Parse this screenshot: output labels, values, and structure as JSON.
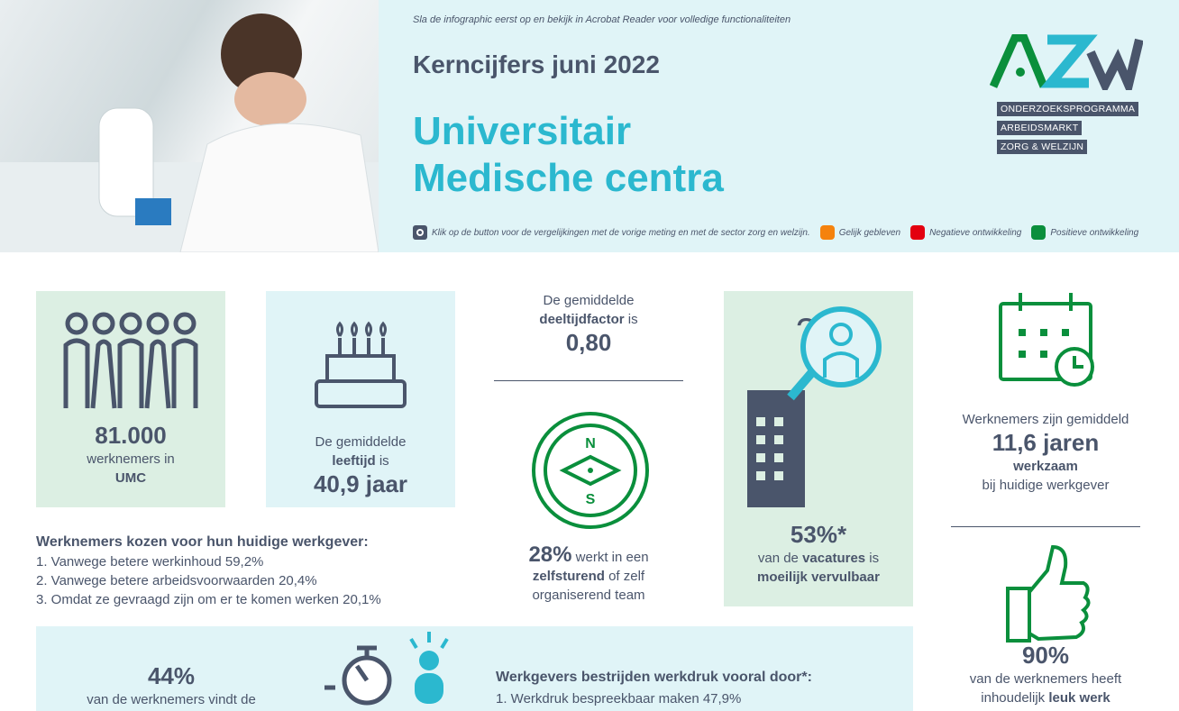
{
  "header": {
    "notice": "Sla de infographic eerst op en bekijk in Acrobat Reader voor volledige functionaliteiten",
    "kicker": "Kerncijfers juni 2022",
    "title_line1": "Universitair",
    "title_line2": "Medische centra",
    "legend": {
      "text": "Klik op de button voor de vergelijkingen met de vorige meting en met de sector zorg en welzijn.",
      "items": [
        {
          "label": "Gelijk gebleven",
          "color": "#f5820d"
        },
        {
          "label": "Negatieve ontwikkeling",
          "color": "#e3000f"
        },
        {
          "label": "Positieve ontwikkeling",
          "color": "#0a8f3c"
        }
      ]
    }
  },
  "logo": {
    "letters": "AZW",
    "lines": [
      "ONDERZOEKSPROGRAMMA",
      "ARBEIDSMARKT",
      "ZORG & WELZIJN"
    ]
  },
  "stats": {
    "employees": {
      "value": "81.000",
      "line1": "werknemers in",
      "line2": "UMC"
    },
    "age": {
      "pre": "De gemiddelde",
      "bold": "leeftijd",
      "post": " is",
      "value": "40,9 jaar"
    },
    "parttime": {
      "pre": "De gemiddelde",
      "bold": "deeltijdfactor",
      "post": " is",
      "value": "0,80"
    },
    "selfsteering": {
      "value": "28%",
      "t1": " werkt in een",
      "bold": "zelfsturend",
      "t2": " of zelf",
      "t3": "organiserend team"
    },
    "vacancies": {
      "value": "53%*",
      "t1": "van de ",
      "bold1": "vacatures",
      "t2": " is",
      "bold2": "moeilijk vervulbaar"
    },
    "tenure": {
      "pre": "Werknemers zijn gemiddeld",
      "value": "11,6 jaren",
      "bold": "werkzaam",
      "post": "bij huidige werkgever"
    },
    "fun": {
      "value": "90%",
      "line1": "van de werknemers heeft",
      "pre": "inhoudelijk ",
      "bold": "leuk werk"
    },
    "workload": {
      "value": "44%",
      "line1": "van de werknemers vindt de"
    }
  },
  "reasons": {
    "title": "Werknemers kozen voor hun huidige werkgever:",
    "items": [
      "1. Vanwege betere werkinhoud 59,2%",
      "2. Vanwege betere arbeidsvoorwaarden 20,4%",
      "3. Omdat ze gevraagd zijn om er te komen werken 20,1%"
    ]
  },
  "measures": {
    "title": "Werkgevers bestrijden werkdruk vooral door*:",
    "items": [
      "1. Werkdruk bespreekbaar maken 47,9%"
    ]
  },
  "compass": {
    "n": "N",
    "s": "S"
  }
}
